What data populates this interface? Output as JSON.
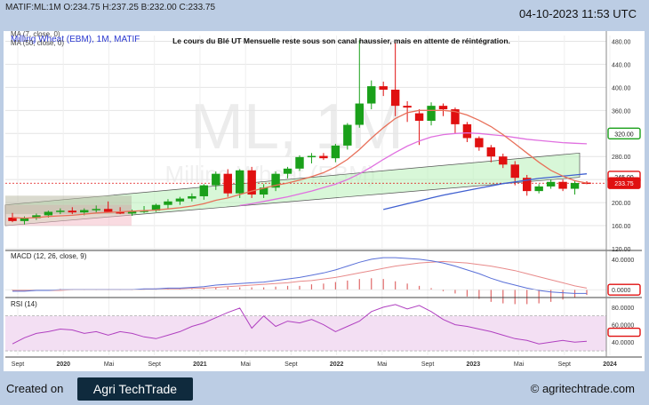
{
  "header": {
    "ohlc": "MATIF:ML:1M O:234.75 H:237.25 B:232.00 C:233.75",
    "datetime": "04-10-2023 11:53 UTC"
  },
  "footer": {
    "created_on": "Created on",
    "brand": "Agri TechTrade",
    "url": "© agritechtrade.com"
  },
  "chart_data": {
    "type": "candlestick",
    "title": "Le cours du Blé UT Mensuelle reste sous son canal haussier, mais en attente de réintégration.",
    "watermark_big": "ML, 1M",
    "watermark_small": "Milling Wheat (EBM)",
    "legend": [
      "MA (7, close, 0)",
      "Milling Wheat (EBM), 1M, MATIF",
      "MA (50, close, 0)"
    ],
    "colors": {
      "up": "#1aa01a",
      "down": "#e01010",
      "ma7": "#e8705a",
      "ma20": "#e070e0",
      "ma50": "#4060d0",
      "channel": "#b8f0b8",
      "grid": "#e4e4e4"
    },
    "x_labels": [
      "Sept",
      "2020",
      "Mai",
      "Sept",
      "2021",
      "Mai",
      "Sept",
      "2022",
      "Mai",
      "Sept",
      "2023",
      "Mai",
      "Sept",
      "2024"
    ],
    "price_ticks": [
      480,
      440,
      400,
      360,
      320,
      280,
      240,
      200,
      160,
      120
    ],
    "price_ylim": [
      120,
      490
    ],
    "candles": [
      {
        "o": 174,
        "h": 182,
        "l": 166,
        "c": 168
      },
      {
        "o": 168,
        "h": 176,
        "l": 162,
        "c": 173
      },
      {
        "o": 173,
        "h": 181,
        "l": 170,
        "c": 178
      },
      {
        "o": 178,
        "h": 186,
        "l": 174,
        "c": 184
      },
      {
        "o": 184,
        "h": 190,
        "l": 180,
        "c": 186
      },
      {
        "o": 186,
        "h": 192,
        "l": 180,
        "c": 183
      },
      {
        "o": 183,
        "h": 190,
        "l": 178,
        "c": 187
      },
      {
        "o": 187,
        "h": 195,
        "l": 183,
        "c": 189
      },
      {
        "o": 189,
        "h": 202,
        "l": 183,
        "c": 184
      },
      {
        "o": 184,
        "h": 192,
        "l": 180,
        "c": 181
      },
      {
        "o": 181,
        "h": 188,
        "l": 177,
        "c": 185
      },
      {
        "o": 185,
        "h": 194,
        "l": 182,
        "c": 186
      },
      {
        "o": 186,
        "h": 198,
        "l": 184,
        "c": 196
      },
      {
        "o": 196,
        "h": 206,
        "l": 190,
        "c": 202
      },
      {
        "o": 202,
        "h": 210,
        "l": 196,
        "c": 207
      },
      {
        "o": 207,
        "h": 216,
        "l": 202,
        "c": 211
      },
      {
        "o": 211,
        "h": 232,
        "l": 205,
        "c": 230
      },
      {
        "o": 230,
        "h": 254,
        "l": 222,
        "c": 250
      },
      {
        "o": 250,
        "h": 258,
        "l": 210,
        "c": 216
      },
      {
        "o": 216,
        "h": 258,
        "l": 208,
        "c": 256
      },
      {
        "o": 256,
        "h": 262,
        "l": 208,
        "c": 214
      },
      {
        "o": 214,
        "h": 232,
        "l": 208,
        "c": 226
      },
      {
        "o": 226,
        "h": 254,
        "l": 220,
        "c": 250
      },
      {
        "o": 250,
        "h": 262,
        "l": 242,
        "c": 259
      },
      {
        "o": 259,
        "h": 282,
        "l": 255,
        "c": 279
      },
      {
        "o": 279,
        "h": 286,
        "l": 268,
        "c": 281
      },
      {
        "o": 281,
        "h": 286,
        "l": 274,
        "c": 277
      },
      {
        "o": 277,
        "h": 302,
        "l": 270,
        "c": 299
      },
      {
        "o": 299,
        "h": 338,
        "l": 292,
        "c": 335
      },
      {
        "o": 335,
        "h": 482,
        "l": 330,
        "c": 372
      },
      {
        "o": 372,
        "h": 412,
        "l": 362,
        "c": 402
      },
      {
        "o": 402,
        "h": 410,
        "l": 385,
        "c": 396
      },
      {
        "o": 396,
        "h": 478,
        "l": 350,
        "c": 368
      },
      {
        "o": 368,
        "h": 376,
        "l": 340,
        "c": 365
      },
      {
        "o": 355,
        "h": 362,
        "l": 300,
        "c": 342
      },
      {
        "o": 342,
        "h": 374,
        "l": 334,
        "c": 368
      },
      {
        "o": 368,
        "h": 372,
        "l": 350,
        "c": 362
      },
      {
        "o": 362,
        "h": 365,
        "l": 320,
        "c": 336
      },
      {
        "o": 336,
        "h": 340,
        "l": 305,
        "c": 312
      },
      {
        "o": 312,
        "h": 315,
        "l": 290,
        "c": 296
      },
      {
        "o": 296,
        "h": 300,
        "l": 270,
        "c": 280
      },
      {
        "o": 280,
        "h": 285,
        "l": 260,
        "c": 266
      },
      {
        "o": 266,
        "h": 272,
        "l": 230,
        "c": 243
      },
      {
        "o": 243,
        "h": 248,
        "l": 212,
        "c": 220
      },
      {
        "o": 220,
        "h": 232,
        "l": 216,
        "c": 228
      },
      {
        "o": 228,
        "h": 240,
        "l": 224,
        "c": 236
      },
      {
        "o": 236,
        "h": 240,
        "l": 220,
        "c": 224
      },
      {
        "o": 224,
        "h": 238,
        "l": 214,
        "c": 234
      },
      {
        "o": 234.75,
        "h": 237.25,
        "l": 232,
        "c": 233.75
      }
    ],
    "ma7": [
      174,
      173,
      174,
      176,
      177,
      178,
      180,
      182,
      183,
      184,
      185,
      186,
      187,
      189,
      191,
      194,
      198,
      204,
      208,
      214,
      220,
      225,
      230,
      234,
      239,
      245,
      252,
      262,
      275,
      292,
      312,
      330,
      346,
      356,
      360,
      360,
      360,
      358,
      352,
      343,
      332,
      318,
      302,
      286,
      270,
      256,
      246,
      238,
      234
    ],
    "ma20": [
      null,
      null,
      null,
      null,
      null,
      null,
      null,
      null,
      null,
      null,
      null,
      null,
      null,
      null,
      null,
      null,
      null,
      null,
      null,
      195,
      198,
      202,
      206,
      210,
      215,
      220,
      226,
      232,
      240,
      250,
      262,
      275,
      287,
      298,
      307,
      314,
      318,
      320,
      321,
      320,
      318,
      316,
      313,
      310,
      308,
      306,
      304,
      303,
      302
    ],
    "ma50": [
      null,
      null,
      null,
      null,
      null,
      null,
      null,
      null,
      null,
      null,
      null,
      null,
      null,
      null,
      null,
      null,
      null,
      null,
      null,
      null,
      null,
      null,
      null,
      null,
      null,
      null,
      null,
      null,
      null,
      null,
      null,
      188,
      193,
      198,
      203,
      208,
      213,
      217,
      221,
      225,
      229,
      233,
      236,
      239,
      242,
      244,
      246,
      248,
      250
    ],
    "channel": {
      "upper": [
        196,
        226,
        256,
        286
      ],
      "lower": [
        160,
        188,
        216,
        244
      ]
    },
    "last_price_label": "233.75",
    "right_labels": [
      "320.00",
      "245.00",
      "233.75"
    ],
    "macd": {
      "label": "MACD (12, 26, close, 9)",
      "ticks": [
        "40.0000",
        "0.0000"
      ],
      "ylim": [
        -8,
        48
      ],
      "macd": [
        -2,
        -2,
        -1,
        -1,
        0,
        0,
        0,
        0,
        0,
        0,
        0,
        1,
        1,
        2,
        2,
        3,
        4,
        6,
        7,
        8,
        9,
        10,
        12,
        14,
        16,
        19,
        22,
        26,
        31,
        36,
        40,
        42,
        42,
        41,
        40,
        38,
        35,
        31,
        26,
        21,
        15,
        10,
        6,
        2,
        -1,
        -3,
        -4,
        -5,
        -5
      ],
      "signal": [
        -1,
        -1,
        -1,
        -1,
        -1,
        0,
        0,
        0,
        0,
        0,
        0,
        0,
        1,
        1,
        1,
        2,
        2,
        3,
        4,
        5,
        6,
        7,
        8,
        9,
        11,
        12,
        14,
        16,
        19,
        22,
        25,
        28,
        31,
        33,
        35,
        36,
        37,
        36,
        35,
        33,
        31,
        28,
        25,
        21,
        17,
        13,
        9,
        5,
        2
      ],
      "hist": [
        -1,
        -1,
        0,
        0,
        1,
        0,
        0,
        0,
        0,
        0,
        0,
        1,
        0,
        1,
        1,
        1,
        2,
        3,
        3,
        3,
        3,
        3,
        4,
        5,
        5,
        7,
        8,
        10,
        12,
        14,
        15,
        14,
        11,
        8,
        5,
        2,
        -2,
        -5,
        -9,
        -12,
        -16,
        -18,
        -19,
        -19,
        -18,
        -16,
        -13,
        -10,
        -7
      ]
    },
    "rsi": {
      "label": "RSI (14)",
      "ticks": [
        "80.0000",
        "60.0000",
        "40.0000"
      ],
      "ylim": [
        25,
        88
      ],
      "band": [
        30,
        70
      ],
      "values": [
        38,
        45,
        50,
        52,
        55,
        54,
        50,
        52,
        48,
        52,
        50,
        46,
        44,
        48,
        52,
        58,
        62,
        68,
        74,
        79,
        56,
        70,
        58,
        64,
        62,
        66,
        60,
        52,
        58,
        64,
        75,
        80,
        83,
        78,
        82,
        75,
        66,
        60,
        58,
        55,
        52,
        48,
        44,
        42,
        38,
        40,
        42,
        40,
        41
      ]
    }
  }
}
